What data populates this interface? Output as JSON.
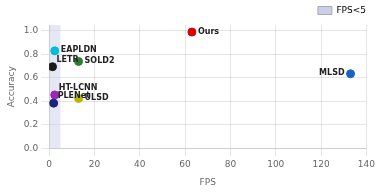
{
  "chart_data": {
    "type": "scatter",
    "xlabel": "FPS",
    "ylabel": "Accuracy",
    "x": [
      63,
      2.5,
      1.5,
      13,
      2.5,
      13,
      2.0,
      133
    ],
    "values": [
      0.99,
      0.83,
      0.695,
      0.74,
      0.455,
      0.425,
      0.385,
      0.635
    ],
    "colors": [
      "#dd0000",
      "#00bcd4",
      "#1a1a1a",
      "#2e7d32",
      "#9c27b0",
      "#bdb400",
      "#1a237e",
      "#1565c0"
    ],
    "annotations": [
      "Ours",
      "EAPLDN",
      "LETR",
      "SOLD2",
      "HT-LCNN",
      "ULSD",
      "PLENet",
      "MLSD"
    ],
    "xlim": [
      0,
      140
    ],
    "xticks": [
      0,
      20,
      40,
      60,
      80,
      100,
      120,
      140
    ],
    "ylim": [
      0.0,
      1.05
    ],
    "yticks": [
      {
        "value": 0.0,
        "label": "0.0"
      },
      0.2,
      0.4,
      0.6,
      0.8,
      {
        "value": 1.0,
        "label": "1.0"
      }
    ],
    "grid": true,
    "legend": "upper right",
    "shade": {
      "x": [
        0,
        5
      ],
      "label": "FPS<5",
      "color": "#c5cae9"
    }
  }
}
